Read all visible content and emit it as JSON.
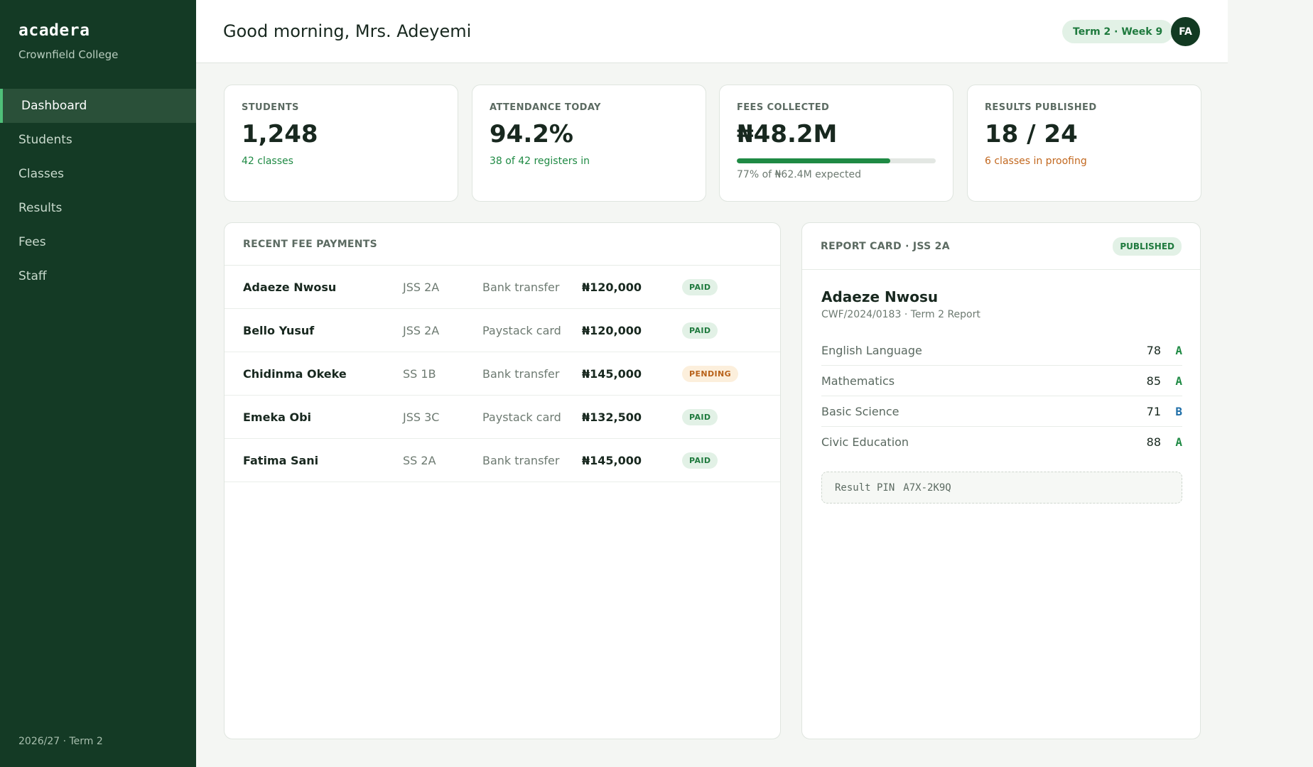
{
  "sidebar": {
    "brand": "acadera",
    "school": "Crownfield College",
    "items": [
      {
        "label": "Dashboard",
        "active": true
      },
      {
        "label": "Students",
        "active": false
      },
      {
        "label": "Classes",
        "active": false
      },
      {
        "label": "Results",
        "active": false
      },
      {
        "label": "Fees",
        "active": false
      },
      {
        "label": "Staff",
        "active": false
      }
    ],
    "footer": "2026/27 · Term 2"
  },
  "header": {
    "greeting": "Good morning, Mrs. Adeyemi",
    "term_pill": "Term 2 · Week 9",
    "avatar_initials": "FA"
  },
  "stats": [
    {
      "label": "STUDENTS",
      "value": "1,248",
      "sub": "42 classes"
    },
    {
      "label": "ATTENDANCE TODAY",
      "value": "94.2%",
      "sub": "38 of 42 registers in"
    },
    {
      "label": "FEES COLLECTED",
      "value": "₦48.2M",
      "progress_fraction": 0.77,
      "sub": "77% of ₦62.4M expected"
    },
    {
      "label": "RESULTS PUBLISHED",
      "value": "18 / 24",
      "sub": "6 classes in proofing"
    }
  ],
  "fees": {
    "title": "RECENT FEE PAYMENTS",
    "rows": [
      {
        "name": "Adaeze Nwosu",
        "class": "JSS 2A",
        "method": "Bank transfer",
        "amount": "₦120,000",
        "status": "PAID"
      },
      {
        "name": "Bello Yusuf",
        "class": "JSS 2A",
        "method": "Paystack card",
        "amount": "₦120,000",
        "status": "PAID"
      },
      {
        "name": "Chidinma Okeke",
        "class": "SS 1B",
        "method": "Bank transfer",
        "amount": "₦145,000",
        "status": "PENDING"
      },
      {
        "name": "Emeka Obi",
        "class": "JSS 3C",
        "method": "Paystack card",
        "amount": "₦132,500",
        "status": "PAID"
      },
      {
        "name": "Fatima Sani",
        "class": "SS 2A",
        "method": "Bank transfer",
        "amount": "₦145,000",
        "status": "PAID"
      }
    ]
  },
  "report": {
    "title": "REPORT CARD · JSS 2A",
    "badge": "PUBLISHED",
    "student_name": "Adaeze Nwosu",
    "student_meta": "CWF/2024/0183 · Term 2 Report",
    "subjects": [
      {
        "name": "English Language",
        "score": "78",
        "grade": "A"
      },
      {
        "name": "Mathematics",
        "score": "85",
        "grade": "A"
      },
      {
        "name": "Basic Science",
        "score": "71",
        "grade": "B"
      },
      {
        "name": "Civic Education",
        "score": "88",
        "grade": "A"
      }
    ],
    "pin_label": "Result PIN",
    "pin_value": "A7X-2K9Q"
  },
  "colors": {
    "sidebar_bg": "#143a25",
    "accent_green": "#1f8a44",
    "pending_orange": "#c2681f",
    "grade_b_blue": "#1f6fa8"
  }
}
